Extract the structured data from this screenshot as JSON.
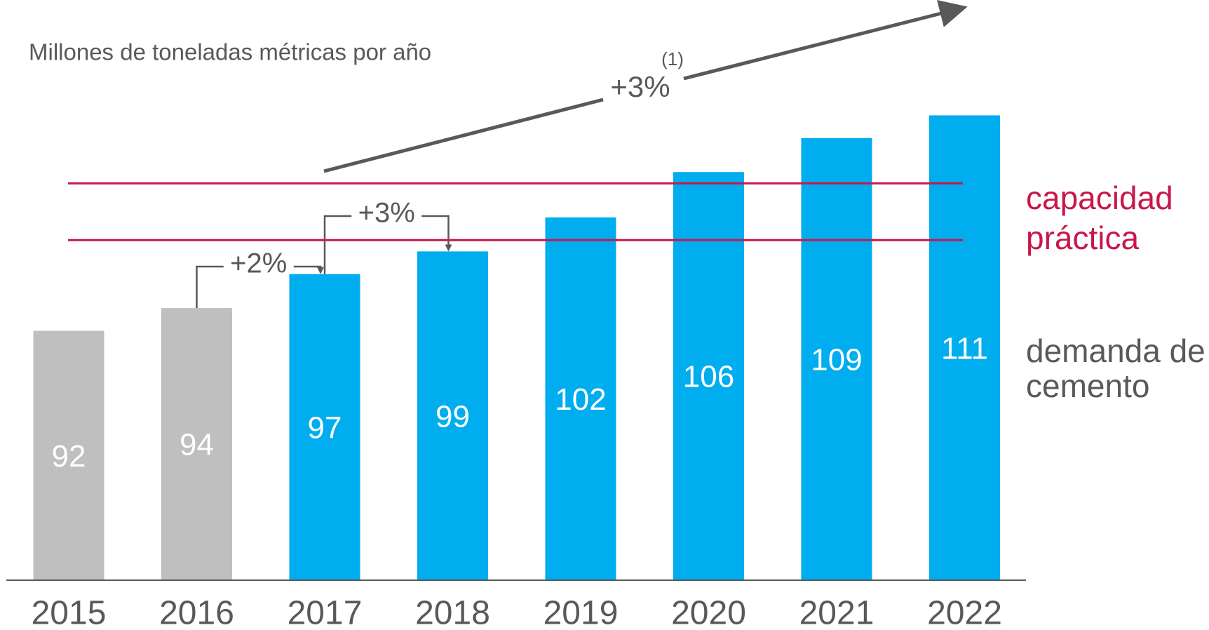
{
  "chart_data": {
    "type": "bar",
    "title": "Millones de toneladas métricas por año",
    "categories": [
      "2015",
      "2016",
      "2017",
      "2018",
      "2019",
      "2020",
      "2021",
      "2022"
    ],
    "values": [
      92,
      94,
      97,
      99,
      102,
      106,
      109,
      111
    ],
    "colors": [
      "#bfbfbf",
      "#bfbfbf",
      "#00adef",
      "#00adef",
      "#00adef",
      "#00adef",
      "#00adef",
      "#00adef"
    ],
    "ylim": [
      70,
      120
    ],
    "reference_lines": {
      "values": [
        105,
        100
      ],
      "color": "#c8174b",
      "label": [
        "capacidad",
        "práctica"
      ]
    },
    "series_label": [
      "demanda de",
      "cemento"
    ],
    "growth_labels": [
      "+2%",
      "+3%"
    ],
    "trend_label": "+3%",
    "trend_note": "(1)"
  }
}
